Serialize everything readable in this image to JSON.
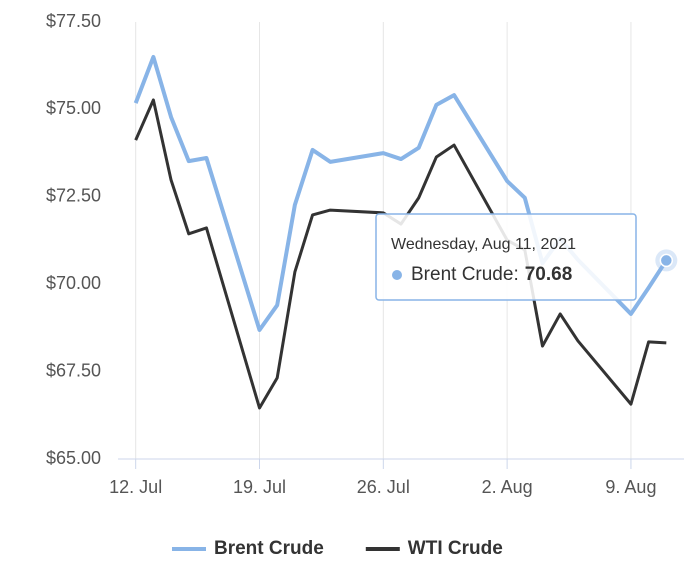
{
  "chart_data": {
    "type": "line",
    "x": [
      "2021-07-12",
      "2021-07-13",
      "2021-07-14",
      "2021-07-15",
      "2021-07-16",
      "2021-07-19",
      "2021-07-20",
      "2021-07-21",
      "2021-07-22",
      "2021-07-23",
      "2021-07-26",
      "2021-07-27",
      "2021-07-28",
      "2021-07-29",
      "2021-07-30",
      "2021-08-02",
      "2021-08-03",
      "2021-08-04",
      "2021-08-05",
      "2021-08-06",
      "2021-08-09",
      "2021-08-10",
      "2021-08-11"
    ],
    "series": [
      {
        "name": "Brent Crude",
        "color": "#88b4e7",
        "values": [
          75.18,
          76.5,
          74.78,
          73.52,
          73.61,
          68.69,
          69.4,
          72.27,
          73.84,
          73.5,
          73.75,
          73.58,
          73.9,
          75.13,
          75.41,
          72.95,
          72.47,
          70.6,
          71.3,
          70.7,
          69.15,
          69.9,
          70.68
        ]
      },
      {
        "name": "WTI Crude",
        "color": "#333333",
        "values": [
          74.12,
          75.27,
          72.98,
          71.44,
          71.61,
          66.46,
          67.32,
          70.35,
          71.98,
          72.12,
          72.04,
          71.72,
          72.47,
          73.64,
          73.98,
          71.26,
          70.98,
          68.23,
          69.15,
          68.38,
          66.57,
          68.35,
          68.32
        ]
      }
    ],
    "xlim": [
      "2021-07-11",
      "2021-08-12"
    ],
    "xticks": [
      {
        "value": "2021-07-12",
        "label": "12. Jul"
      },
      {
        "value": "2021-07-19",
        "label": "19. Jul"
      },
      {
        "value": "2021-07-26",
        "label": "26. Jul"
      },
      {
        "value": "2021-08-02",
        "label": "2. Aug"
      },
      {
        "value": "2021-08-09",
        "label": "9. Aug"
      }
    ],
    "ylim": [
      65,
      77.5
    ],
    "yticks": [
      {
        "value": 65,
        "label": "$65.00"
      },
      {
        "value": 67.5,
        "label": "$67.50"
      },
      {
        "value": 70,
        "label": "$70.00"
      },
      {
        "value": 72.5,
        "label": "$72.50"
      },
      {
        "value": 75,
        "label": "$75.00"
      },
      {
        "value": 77.5,
        "label": "$77.50"
      }
    ],
    "grid": "x",
    "legend": "bottom",
    "tooltip": {
      "date": "Wednesday, Aug 11, 2021",
      "label": "Brent Crude:",
      "value": 70.68
    }
  }
}
